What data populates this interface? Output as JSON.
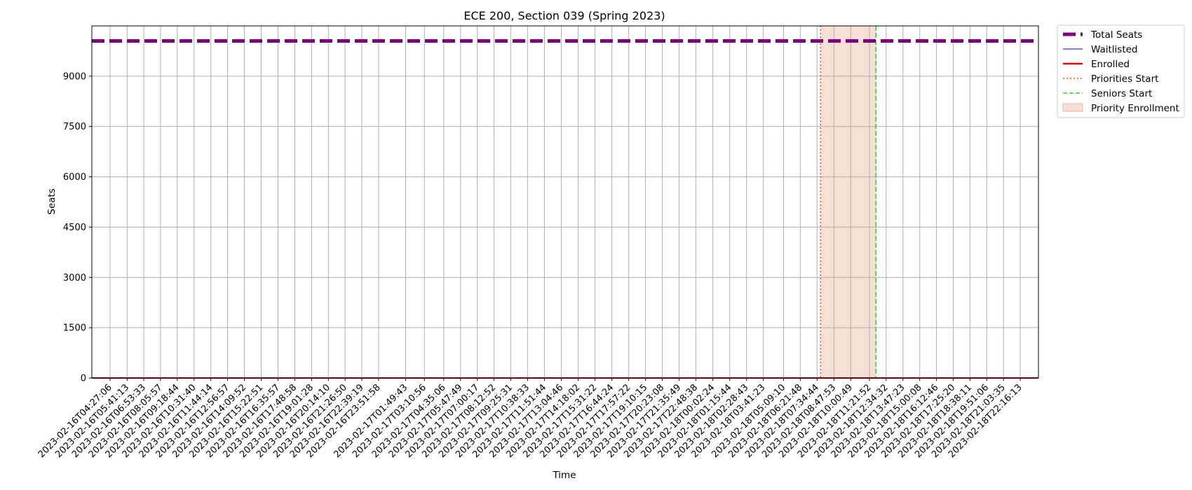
{
  "chart_data": {
    "type": "line",
    "title": "ECE 200, Section 039 (Spring 2023)",
    "xlabel": "Time",
    "ylabel": "Seats",
    "ylim": [
      0,
      10500
    ],
    "yticks": [
      0,
      1500,
      3000,
      4500,
      6000,
      7500,
      9000
    ],
    "grid": true,
    "legend_position": "outside-top-right",
    "x": [
      "2023-02-16T04:27:06",
      "2023-02-16T05:41:13",
      "2023-02-16T06:53:33",
      "2023-02-16T08:05:57",
      "2023-02-16T09:18:44",
      "2023-02-16T10:31:40",
      "2023-02-16T11:44:14",
      "2023-02-16T12:56:57",
      "2023-02-16T14:09:52",
      "2023-02-16T15:22:51",
      "2023-02-16T16:35:57",
      "2023-02-16T17:48:58",
      "2023-02-16T19:01:28",
      "2023-02-16T20:14:10",
      "2023-02-16T21:26:50",
      "2023-02-16T22:39:19",
      "2023-02-16T23:51:58",
      "2023-02-17T01:49:43",
      "2023-02-17T03:10:56",
      "2023-02-17T04:35:06",
      "2023-02-17T05:47:49",
      "2023-02-17T07:00:17",
      "2023-02-17T08:12:52",
      "2023-02-17T09:25:31",
      "2023-02-17T10:38:33",
      "2023-02-17T11:51:44",
      "2023-02-17T13:04:46",
      "2023-02-17T14:18:02",
      "2023-02-17T15:31:22",
      "2023-02-17T16:44:24",
      "2023-02-17T17:57:22",
      "2023-02-17T19:10:15",
      "2023-02-17T20:23:08",
      "2023-02-17T21:35:49",
      "2023-02-17T22:48:38",
      "2023-02-18T00:02:24",
      "2023-02-18T01:15:44",
      "2023-02-18T02:28:43",
      "2023-02-18T03:41:23",
      "2023-02-18T05:09:10",
      "2023-02-18T06:21:48",
      "2023-02-18T07:34:44",
      "2023-02-18T08:47:53",
      "2023-02-18T10:00:49",
      "2023-02-18T11:21:52",
      "2023-02-18T12:34:32",
      "2023-02-18T13:47:23",
      "2023-02-18T15:00:08",
      "2023-02-18T16:12:46",
      "2023-02-18T17:25:20",
      "2023-02-18T18:38:11",
      "2023-02-18T19:51:06",
      "2023-02-18T21:03:35",
      "2023-02-18T22:16:13"
    ],
    "series": [
      {
        "name": "Total Seats",
        "color": "#800080",
        "style": "dashed-thick",
        "value_all": 10050
      },
      {
        "name": "Waitlisted",
        "color": "#0000ff",
        "style": "solid-thin",
        "value_all": 0
      },
      {
        "name": "Enrolled",
        "color": "#ff0000",
        "style": "solid",
        "value_all": 0
      }
    ],
    "markers": [
      {
        "name": "Priorities Start",
        "color": "#ff4500",
        "style": "dotted",
        "x": "2023-02-18T07:50:00"
      },
      {
        "name": "Seniors Start",
        "color": "#32cd32",
        "style": "dashed",
        "x": "2023-02-18T11:50:00"
      }
    ],
    "spans": [
      {
        "name": "Priority Enrollment",
        "color": "#f6e0d6",
        "edge": "#e0b8a5",
        "x_start": "2023-02-18T07:50:00",
        "x_end": "2023-02-18T11:50:00"
      }
    ]
  }
}
